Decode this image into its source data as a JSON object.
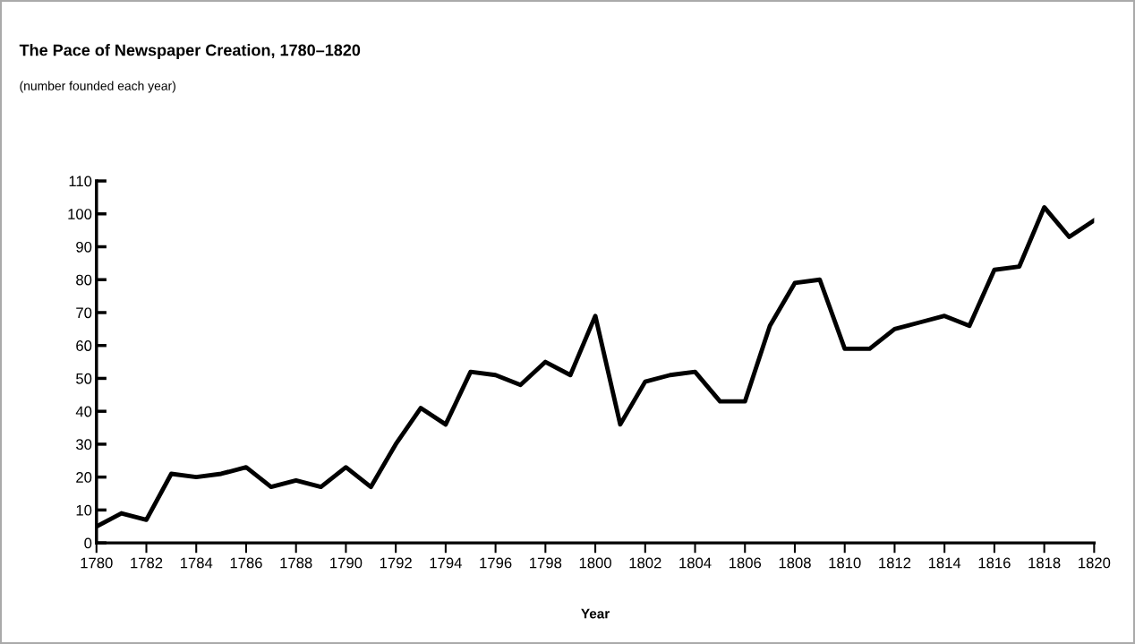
{
  "chart_data": {
    "type": "line",
    "title": "The Pace of Newspaper Creation, 1780–1820",
    "subtitle": "(number founded each year)",
    "xlabel": "Year",
    "x": [
      1780,
      1781,
      1782,
      1783,
      1784,
      1785,
      1786,
      1787,
      1788,
      1789,
      1790,
      1791,
      1792,
      1793,
      1794,
      1795,
      1796,
      1797,
      1798,
      1799,
      1800,
      1801,
      1802,
      1803,
      1804,
      1805,
      1806,
      1807,
      1808,
      1809,
      1810,
      1811,
      1812,
      1813,
      1814,
      1815,
      1816,
      1817,
      1818,
      1819,
      1820
    ],
    "series": [
      {
        "color": "#000000",
        "values": [
          5,
          9,
          7,
          21,
          20,
          21,
          23,
          17,
          19,
          17,
          23,
          17,
          30,
          41,
          36,
          52,
          51,
          48,
          55,
          51,
          69,
          36,
          49,
          51,
          52,
          43,
          43,
          66,
          79,
          80,
          59,
          59,
          65,
          67,
          69,
          66,
          83,
          84,
          102,
          93,
          98
        ]
      }
    ],
    "xlim": [
      1780,
      1820
    ],
    "xticks": [
      1780,
      1782,
      1784,
      1786,
      1788,
      1790,
      1792,
      1794,
      1796,
      1798,
      1800,
      1802,
      1804,
      1806,
      1808,
      1810,
      1812,
      1814,
      1816,
      1818,
      1820
    ],
    "ylim": [
      0,
      110
    ],
    "yticks": [
      0,
      10,
      20,
      30,
      40,
      50,
      60,
      70,
      80,
      90,
      100,
      110
    ],
    "grid": false,
    "marker": "none",
    "line_style": "solid"
  }
}
